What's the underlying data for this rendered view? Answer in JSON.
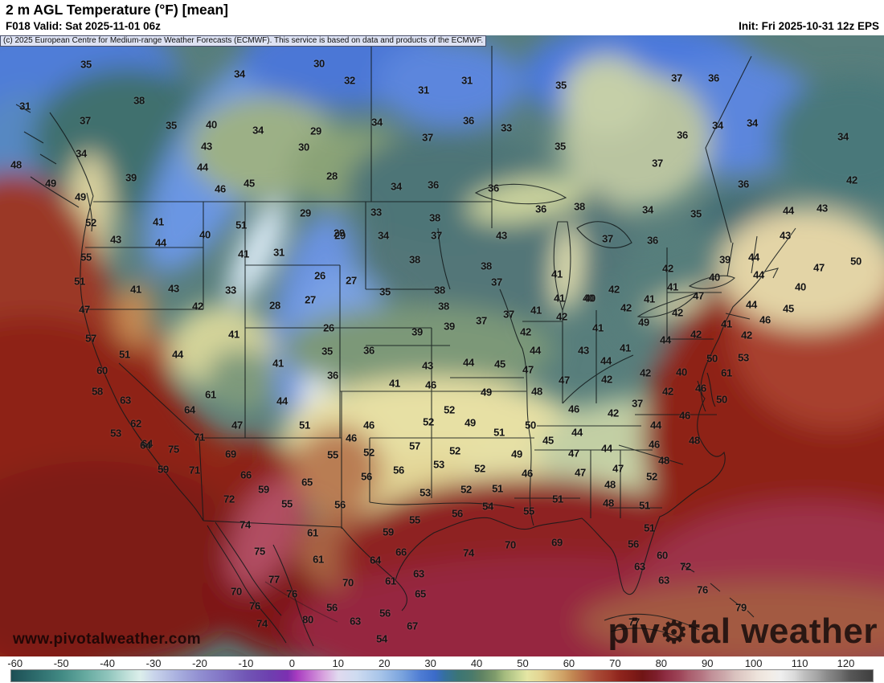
{
  "header": {
    "title": "2 m AGL Temperature (°F) [mean]",
    "valid": "F018 Valid: Sat 2025-11-01 06z",
    "init": "Init: Fri 2025-10-31 12z EPS",
    "copyright": "(c) 2025 European Centre for Medium-range Weather Forecasts (ECMWF). This service is based on data and products of the ECMWF."
  },
  "watermarks": {
    "url": "www.pivotalweather.com",
    "logo_part1": "piv",
    "logo_part2": "tal weather"
  },
  "colorbar": {
    "unit": "°F",
    "min": -61,
    "max": 126,
    "ticks": [
      -60,
      -50,
      -40,
      -30,
      -20,
      -10,
      0,
      10,
      20,
      30,
      40,
      50,
      60,
      70,
      80,
      90,
      100,
      110,
      120
    ],
    "stops": [
      [
        -61,
        "#1d4f55"
      ],
      [
        -55,
        "#2f6f6f"
      ],
      [
        -50,
        "#428a84"
      ],
      [
        -45,
        "#65a99f"
      ],
      [
        -40,
        "#8fc5bc"
      ],
      [
        -36,
        "#bedfd8"
      ],
      [
        -33,
        "#dcefeb"
      ],
      [
        -30,
        "#c9d4eb"
      ],
      [
        -25,
        "#a9b0df"
      ],
      [
        -20,
        "#918ed1"
      ],
      [
        -15,
        "#8173c5"
      ],
      [
        -10,
        "#7156b5"
      ],
      [
        -5,
        "#6d40af"
      ],
      [
        -1,
        "#7c30b1"
      ],
      [
        1,
        "#a83cc0"
      ],
      [
        4,
        "#c26fd0"
      ],
      [
        7,
        "#d9a6df"
      ],
      [
        10,
        "#e0daef"
      ],
      [
        14,
        "#cedbf0"
      ],
      [
        19,
        "#a8c5e9"
      ],
      [
        24,
        "#78a2dd"
      ],
      [
        28,
        "#4d7bd3"
      ],
      [
        31,
        "#3b6bc9"
      ],
      [
        33,
        "#35709f"
      ],
      [
        36,
        "#3b7575"
      ],
      [
        39,
        "#4a7a6b"
      ],
      [
        41,
        "#5e8263"
      ],
      [
        44,
        "#7e9b6b"
      ],
      [
        46,
        "#a3ba7d"
      ],
      [
        49,
        "#cad796"
      ],
      [
        51,
        "#e5e6a4"
      ],
      [
        54,
        "#e4d492"
      ],
      [
        56,
        "#dbbd7e"
      ],
      [
        59,
        "#ce9f64"
      ],
      [
        61,
        "#c18551"
      ],
      [
        64,
        "#b46243"
      ],
      [
        66,
        "#a94b36"
      ],
      [
        69,
        "#9d3628"
      ],
      [
        71,
        "#8f251d"
      ],
      [
        74,
        "#7f1b17"
      ],
      [
        76,
        "#701515"
      ],
      [
        79,
        "#7d1e2b"
      ],
      [
        81,
        "#8e2d42"
      ],
      [
        84,
        "#9d4357"
      ],
      [
        86,
        "#a95c6c"
      ],
      [
        89,
        "#b57683"
      ],
      [
        91,
        "#c19098"
      ],
      [
        94,
        "#cdaaac"
      ],
      [
        96,
        "#d9c1be"
      ],
      [
        99,
        "#e5d5ce"
      ],
      [
        101,
        "#ede3db"
      ],
      [
        104,
        "#f2ede7"
      ],
      [
        106,
        "#efefef"
      ],
      [
        109,
        "#dadada"
      ],
      [
        111,
        "#c0c0c0"
      ],
      [
        114,
        "#a4a4a4"
      ],
      [
        116,
        "#8b8b8b"
      ],
      [
        119,
        "#707070"
      ],
      [
        121,
        "#585858"
      ],
      [
        126,
        "#3e3e3e"
      ]
    ]
  },
  "map_data": {
    "type": "filled-contour temperature map",
    "region": "North America / CONUS",
    "units": "°F",
    "palette": {
      "canada_teal": "#587e7c",
      "rockies_blue": "#6b93e0",
      "cold_core_white": "#e9f2f9",
      "plains_sage": "#7c9878",
      "south_pale_yellow": "#e7e0a4",
      "desert_red": "#97301c",
      "ocean_red": "#8e2417",
      "gulf_crimson": "#962740",
      "warm_gray_high_end": "#575757"
    },
    "station_values": [
      [
        107,
        80,
        35
      ],
      [
        298,
        92,
        34
      ],
      [
        31,
        132,
        31
      ],
      [
        173,
        125,
        38
      ],
      [
        106,
        150,
        37
      ],
      [
        213,
        156,
        35
      ],
      [
        263,
        155,
        40
      ],
      [
        321,
        162,
        34
      ],
      [
        101,
        191,
        34
      ],
      [
        257,
        182,
        43
      ],
      [
        252,
        208,
        44
      ],
      [
        163,
        221,
        39
      ],
      [
        310,
        228,
        45
      ],
      [
        274,
        235,
        46
      ],
      [
        20,
        205,
        48
      ],
      [
        63,
        228,
        49
      ],
      [
        100,
        245,
        49
      ],
      [
        113,
        277,
        52
      ],
      [
        197,
        276,
        41
      ],
      [
        144,
        298,
        43
      ],
      [
        200,
        302,
        44
      ],
      [
        255,
        292,
        40
      ],
      [
        300,
        280,
        51
      ],
      [
        397,
        79,
        30
      ],
      [
        435,
        100,
        32
      ],
      [
        527,
        112,
        31
      ],
      [
        581,
        100,
        31
      ],
      [
        698,
        106,
        35
      ],
      [
        393,
        163,
        29
      ],
      [
        378,
        183,
        30
      ],
      [
        469,
        152,
        34
      ],
      [
        532,
        171,
        37
      ],
      [
        583,
        150,
        36
      ],
      [
        630,
        159,
        33
      ],
      [
        697,
        182,
        35
      ],
      [
        413,
        219,
        28
      ],
      [
        493,
        232,
        34
      ],
      [
        539,
        230,
        36
      ],
      [
        614,
        234,
        36
      ],
      [
        380,
        265,
        29
      ],
      [
        468,
        264,
        33
      ],
      [
        422,
        290,
        29
      ],
      [
        477,
        293,
        34
      ],
      [
        541,
        271,
        38
      ],
      [
        543,
        293,
        37
      ],
      [
        673,
        260,
        36
      ],
      [
        721,
        257,
        38
      ],
      [
        624,
        293,
        43
      ],
      [
        842,
        97,
        37
      ],
      [
        888,
        97,
        36
      ],
      [
        893,
        156,
        34
      ],
      [
        936,
        153,
        34
      ],
      [
        1049,
        170,
        34
      ],
      [
        849,
        168,
        36
      ],
      [
        818,
        203,
        37
      ],
      [
        925,
        229,
        36
      ],
      [
        806,
        261,
        34
      ],
      [
        866,
        266,
        35
      ],
      [
        1060,
        224,
        42
      ],
      [
        1023,
        259,
        43
      ],
      [
        981,
        262,
        44
      ],
      [
        977,
        293,
        43
      ],
      [
        756,
        297,
        37
      ],
      [
        812,
        299,
        36
      ],
      [
        107,
        320,
        55
      ],
      [
        99,
        350,
        51
      ],
      [
        169,
        360,
        41
      ],
      [
        216,
        359,
        43
      ],
      [
        303,
        316,
        41
      ],
      [
        347,
        314,
        31
      ],
      [
        287,
        361,
        33
      ],
      [
        246,
        381,
        42
      ],
      [
        342,
        380,
        28
      ],
      [
        105,
        385,
        47
      ],
      [
        113,
        421,
        57
      ],
      [
        155,
        441,
        51
      ],
      [
        221,
        441,
        44
      ],
      [
        291,
        416,
        41
      ],
      [
        346,
        452,
        41
      ],
      [
        127,
        461,
        60
      ],
      [
        121,
        487,
        58
      ],
      [
        156,
        498,
        63
      ],
      [
        262,
        491,
        61
      ],
      [
        351,
        499,
        44
      ],
      [
        169,
        527,
        62
      ],
      [
        236,
        510,
        64
      ],
      [
        295,
        529,
        47
      ],
      [
        144,
        539,
        53
      ],
      [
        183,
        552,
        64
      ],
      [
        248,
        544,
        71
      ],
      [
        216,
        559,
        75
      ],
      [
        516,
        323,
        38
      ],
      [
        605,
        331,
        38
      ],
      [
        618,
        351,
        37
      ],
      [
        693,
        341,
        41
      ],
      [
        398,
        343,
        26
      ],
      [
        437,
        349,
        27
      ],
      [
        386,
        373,
        27
      ],
      [
        479,
        363,
        35
      ],
      [
        547,
        361,
        38
      ],
      [
        552,
        381,
        38
      ],
      [
        696,
        371,
        41
      ],
      [
        732,
        371,
        40
      ],
      [
        409,
        408,
        26
      ],
      [
        423,
        293,
        29
      ],
      [
        599,
        399,
        37
      ],
      [
        633,
        391,
        37
      ],
      [
        667,
        386,
        41
      ],
      [
        699,
        394,
        42
      ],
      [
        654,
        413,
        42
      ],
      [
        407,
        437,
        35
      ],
      [
        459,
        436,
        36
      ],
      [
        519,
        413,
        39
      ],
      [
        559,
        406,
        39
      ],
      [
        666,
        436,
        44
      ],
      [
        726,
        436,
        43
      ],
      [
        414,
        467,
        36
      ],
      [
        532,
        455,
        43
      ],
      [
        583,
        451,
        44
      ],
      [
        622,
        453,
        45
      ],
      [
        657,
        460,
        47
      ],
      [
        702,
        473,
        47
      ],
      [
        491,
        477,
        41
      ],
      [
        536,
        479,
        46
      ],
      [
        668,
        487,
        48
      ],
      [
        605,
        488,
        49
      ],
      [
        714,
        509,
        46
      ],
      [
        379,
        529,
        51
      ],
      [
        559,
        510,
        52
      ],
      [
        533,
        525,
        52
      ],
      [
        585,
        526,
        49
      ],
      [
        660,
        529,
        50
      ],
      [
        718,
        538,
        44
      ],
      [
        459,
        529,
        46
      ],
      [
        437,
        545,
        46
      ],
      [
        682,
        548,
        45
      ],
      [
        621,
        538,
        51
      ],
      [
        516,
        555,
        57
      ],
      [
        902,
        323,
        39
      ],
      [
        938,
        320,
        44
      ],
      [
        1019,
        333,
        47
      ],
      [
        1065,
        325,
        50
      ],
      [
        889,
        345,
        40
      ],
      [
        944,
        342,
        44
      ],
      [
        831,
        334,
        42
      ],
      [
        837,
        357,
        41
      ],
      [
        764,
        360,
        42
      ],
      [
        734,
        371,
        40
      ],
      [
        808,
        372,
        41
      ],
      [
        869,
        368,
        47
      ],
      [
        935,
        379,
        44
      ],
      [
        996,
        357,
        40
      ],
      [
        981,
        384,
        45
      ],
      [
        779,
        383,
        42
      ],
      [
        801,
        401,
        49
      ],
      [
        843,
        389,
        42
      ],
      [
        952,
        398,
        46
      ],
      [
        744,
        408,
        41
      ],
      [
        904,
        403,
        41
      ],
      [
        828,
        423,
        44
      ],
      [
        866,
        416,
        42
      ],
      [
        929,
        417,
        42
      ],
      [
        778,
        433,
        41
      ],
      [
        925,
        445,
        53
      ],
      [
        886,
        446,
        50
      ],
      [
        754,
        449,
        44
      ],
      [
        755,
        472,
        42
      ],
      [
        848,
        463,
        40
      ],
      [
        904,
        464,
        61
      ],
      [
        803,
        464,
        42
      ],
      [
        831,
        487,
        42
      ],
      [
        872,
        483,
        46
      ],
      [
        793,
        502,
        37
      ],
      [
        898,
        497,
        50
      ],
      [
        763,
        514,
        42
      ],
      [
        852,
        517,
        46
      ],
      [
        816,
        529,
        44
      ],
      [
        864,
        548,
        48
      ],
      [
        814,
        553,
        46
      ],
      [
        755,
        558,
        44
      ],
      [
        181,
        554,
        64
      ],
      [
        203,
        584,
        59
      ],
      [
        242,
        585,
        71
      ],
      [
        287,
        565,
        69
      ],
      [
        306,
        591,
        66
      ],
      [
        328,
        609,
        59
      ],
      [
        357,
        627,
        55
      ],
      [
        285,
        621,
        72
      ],
      [
        305,
        653,
        74
      ],
      [
        323,
        686,
        75
      ],
      [
        341,
        721,
        77
      ],
      [
        294,
        736,
        70
      ],
      [
        317,
        754,
        76
      ],
      [
        326,
        776,
        74
      ],
      [
        363,
        739,
        76
      ],
      [
        414,
        566,
        55
      ],
      [
        459,
        563,
        52
      ],
      [
        566,
        561,
        52
      ],
      [
        643,
        565,
        49
      ],
      [
        714,
        564,
        47
      ],
      [
        496,
        585,
        56
      ],
      [
        456,
        593,
        56
      ],
      [
        546,
        578,
        53
      ],
      [
        597,
        583,
        52
      ],
      [
        656,
        589,
        46
      ],
      [
        722,
        588,
        47
      ],
      [
        382,
        600,
        65
      ],
      [
        529,
        613,
        53
      ],
      [
        580,
        609,
        52
      ],
      [
        619,
        608,
        51
      ],
      [
        694,
        621,
        51
      ],
      [
        423,
        628,
        56
      ],
      [
        607,
        630,
        54
      ],
      [
        569,
        639,
        56
      ],
      [
        658,
        636,
        55
      ],
      [
        516,
        647,
        55
      ],
      [
        483,
        662,
        59
      ],
      [
        389,
        663,
        61
      ],
      [
        499,
        687,
        66
      ],
      [
        467,
        697,
        64
      ],
      [
        396,
        696,
        61
      ],
      [
        635,
        678,
        70
      ],
      [
        693,
        675,
        69
      ],
      [
        583,
        688,
        74
      ],
      [
        521,
        714,
        63
      ],
      [
        486,
        723,
        61
      ],
      [
        433,
        725,
        70
      ],
      [
        523,
        739,
        65
      ],
      [
        413,
        756,
        56
      ],
      [
        479,
        763,
        56
      ],
      [
        383,
        771,
        80
      ],
      [
        442,
        773,
        63
      ],
      [
        513,
        779,
        67
      ],
      [
        475,
        795,
        54
      ],
      [
        826,
        573,
        48
      ],
      [
        769,
        583,
        47
      ],
      [
        811,
        593,
        52
      ],
      [
        759,
        603,
        48
      ],
      [
        757,
        626,
        48
      ],
      [
        802,
        629,
        51
      ],
      [
        808,
        657,
        51
      ],
      [
        788,
        677,
        56
      ],
      [
        824,
        691,
        60
      ],
      [
        796,
        705,
        63
      ],
      [
        826,
        722,
        63
      ],
      [
        853,
        705,
        72
      ],
      [
        874,
        734,
        76
      ],
      [
        922,
        756,
        79
      ],
      [
        789,
        774,
        77
      ]
    ]
  }
}
